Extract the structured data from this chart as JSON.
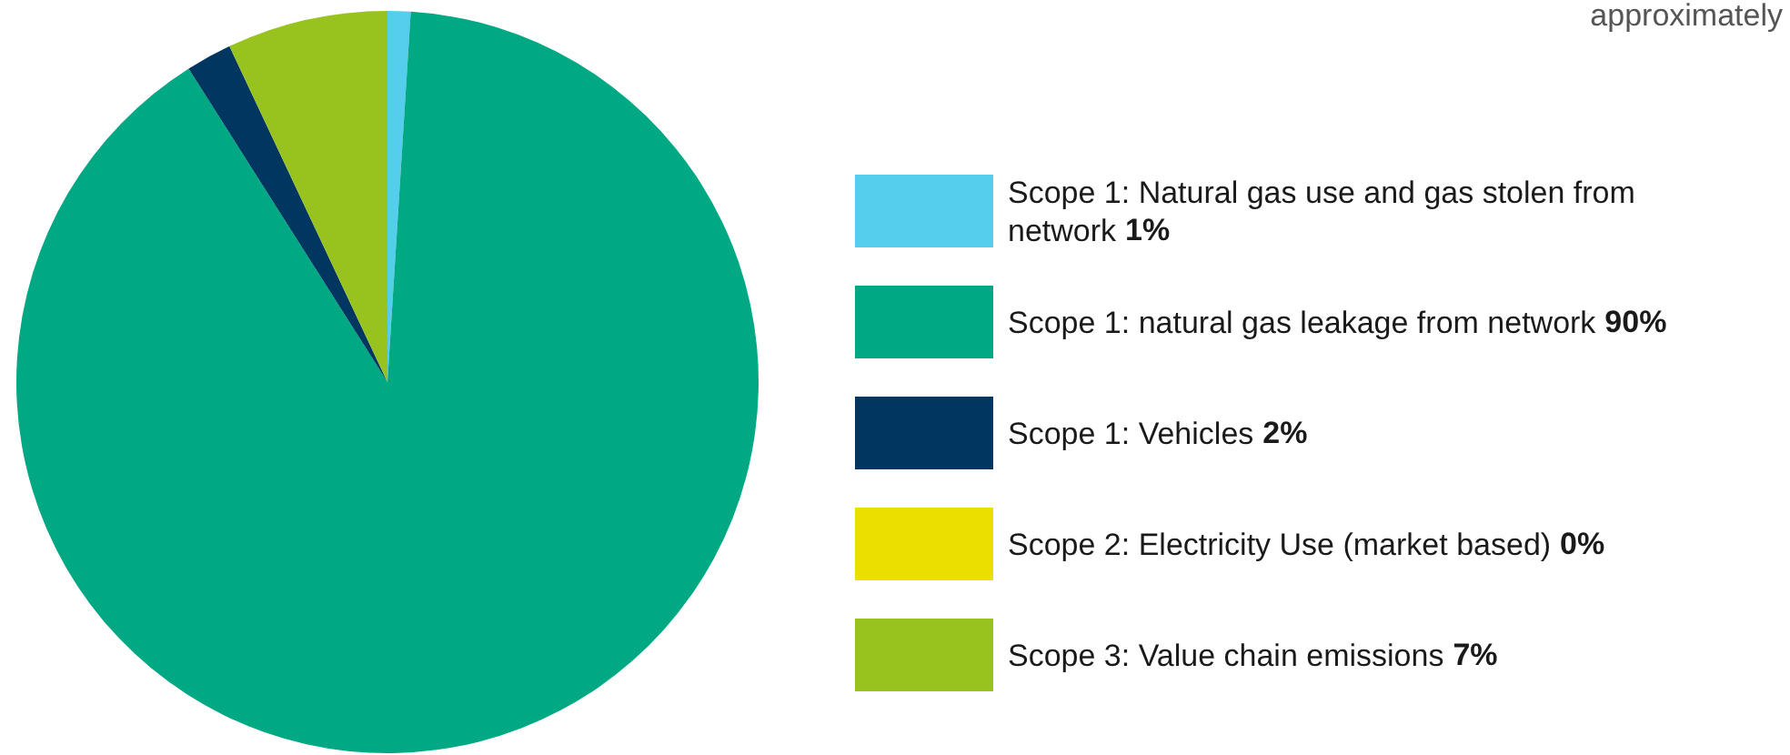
{
  "chart_data": {
    "type": "pie",
    "categories": [
      "Scope 1: Natural gas use and gas stolen from network",
      "Scope 1: natural gas leakage from network",
      "Scope 1: Vehicles",
      "Scope 2: Electricity Use (market based)",
      "Scope 3: Value chain emissions"
    ],
    "values": [
      1,
      90,
      2,
      0,
      7
    ],
    "value_labels": [
      "1%",
      "90%",
      "2%",
      "0%",
      "7%"
    ],
    "colors": [
      "#55cdec",
      "#00a883",
      "#00365f",
      "#ebdf00",
      "#98c21d"
    ],
    "legend": "right",
    "annotations": [
      "approximately"
    ]
  }
}
